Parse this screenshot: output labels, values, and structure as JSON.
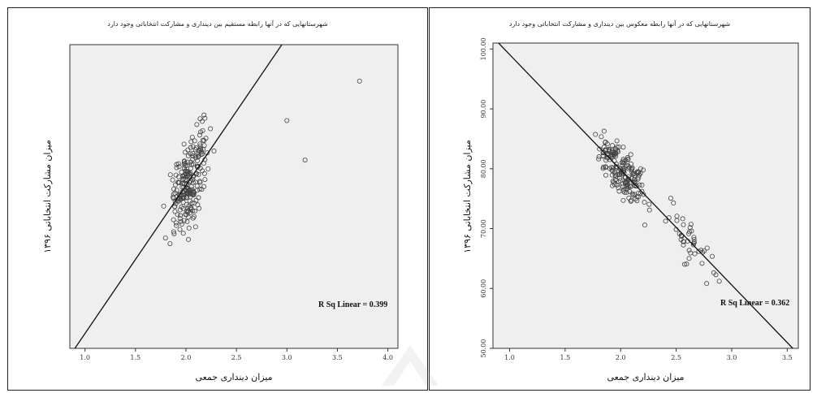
{
  "chart_data": [
    {
      "type": "scatter",
      "title": "شهرستانهایی که در آنها رابطه مستقیم بین دینداری و مشارکت انتخاباتی وجود دارد",
      "xlabel": "میزان دینداری جمعی",
      "ylabel": "میزان مشارکت انتخاباتی ۱۳۹۶",
      "xlim": [
        0.85,
        4.1
      ],
      "ylim": [
        0,
        100
      ],
      "x_ticks": [
        "1.0",
        "1.5",
        "2.0",
        "2.5",
        "3.0",
        "3.5",
        "4.0"
      ],
      "y_ticks": [],
      "r2_text": "R Sq Linear = 0.399",
      "fit_line": {
        "x1": 0.9,
        "y1": 0,
        "x2": 2.95,
        "y2": 100
      },
      "grid": false,
      "seed": 7,
      "n_points": 230,
      "outliers": [
        {
          "x": 3.72,
          "y": 88
        },
        {
          "x": 3.18,
          "y": 62
        },
        {
          "x": 3.0,
          "y": 75
        }
      ]
    },
    {
      "type": "scatter",
      "title": "شهرستانهایی که در آنها رابطه معکوس بین دینداری و مشارکت انتخاباتی وجود دارد",
      "xlabel": "میزان دینداری جمعی",
      "ylabel": "میزان مشارکت انتخاباتی ۱۳۹۶",
      "xlim": [
        0.85,
        3.6
      ],
      "ylim": [
        50,
        101
      ],
      "x_ticks": [
        "1.0",
        "1.5",
        "2.0",
        "2.5",
        "3.0",
        "3.5"
      ],
      "y_ticks": [
        "50.00",
        "60.00",
        "70.00",
        "80.00",
        "90.00",
        "100.00"
      ],
      "r2_text": "R Sq Linear = 0.362",
      "fit_line": {
        "x1": 0.9,
        "y1": 101,
        "x2": 3.55,
        "y2": 50
      },
      "grid": false,
      "seed": 13,
      "n_points": 230,
      "outliers": []
    }
  ]
}
